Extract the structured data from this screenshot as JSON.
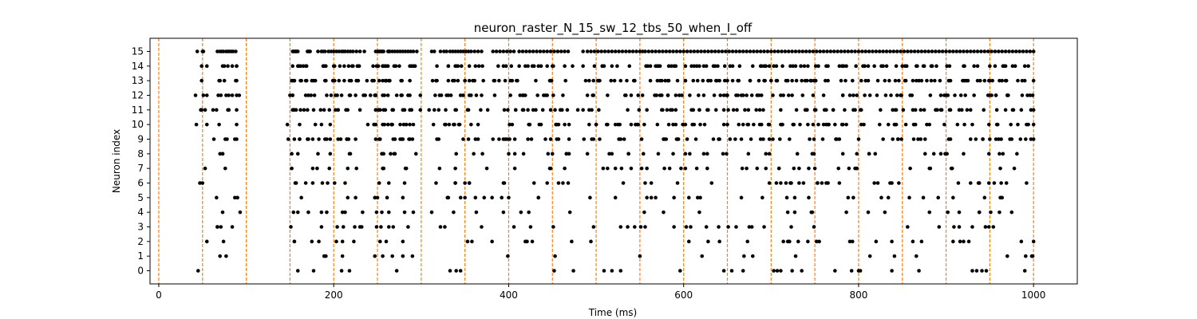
{
  "chart_data": {
    "type": "scatter",
    "title": "neuron_raster_N_15_sw_12_tbs_50_when_I_off",
    "xlabel": "Time (ms)",
    "ylabel": "Neuron index",
    "xlim": [
      -10,
      1050
    ],
    "ylim": [
      -0.9,
      15.9
    ],
    "x_ticks": [
      0,
      200,
      400,
      600,
      800,
      1000
    ],
    "y_ticks": [
      0,
      1,
      2,
      3,
      4,
      5,
      6,
      7,
      8,
      9,
      10,
      11,
      12,
      13,
      14,
      15
    ],
    "point_color": "#000000",
    "vline_color": "#ff7f0e",
    "vline_style": "dashed",
    "vlines": [
      0,
      50,
      100,
      150,
      200,
      250,
      300,
      350,
      400,
      450,
      500,
      550,
      600,
      650,
      700,
      750,
      800,
      850,
      900,
      950,
      1000
    ],
    "spikes": [
      {
        "neuron": 15,
        "times": [
          44,
          50,
          51,
          67,
          70,
          72,
          74,
          77,
          79,
          81,
          83,
          85,
          88,
          153,
          154,
          155,
          156,
          157,
          158,
          159,
          170,
          171,
          172,
          173,
          182,
          186,
          188,
          190,
          194,
          197,
          200,
          203,
          206,
          209,
          211,
          213,
          216,
          219,
          222,
          226,
          230,
          235,
          248,
          250,
          251,
          252,
          253,
          254,
          255,
          256,
          257,
          262,
          263,
          264,
          267,
          270,
          273,
          276,
          279,
          282,
          285,
          288,
          291,
          295,
          312,
          315,
          322,
          326,
          329,
          333,
          336,
          339,
          342,
          345,
          348,
          351,
          354,
          357,
          361,
          365,
          369,
          382,
          386,
          390,
          394,
          398,
          402,
          406,
          412,
          416,
          420,
          424,
          428,
          432,
          436,
          440,
          444,
          448,
          452,
          456,
          460,
          464,
          468,
          485,
          490,
          494,
          498,
          502,
          506,
          510,
          514,
          518,
          522,
          526,
          530,
          534,
          538,
          542,
          546,
          550,
          553,
          556,
          560,
          564,
          568,
          572,
          576,
          580,
          584,
          588,
          592,
          596,
          600,
          604,
          608,
          612,
          616,
          620,
          624,
          628,
          632,
          636,
          640,
          644,
          648,
          652,
          656,
          660,
          664,
          668,
          672,
          676,
          680,
          684,
          688,
          692,
          696,
          700,
          704,
          708,
          712,
          716,
          720,
          724,
          728,
          732,
          736,
          740,
          744,
          748,
          752,
          756,
          760,
          764,
          768,
          772,
          776,
          780,
          784,
          788,
          792,
          796,
          800,
          804,
          808,
          812,
          816,
          820,
          824,
          828,
          832,
          836,
          840,
          844,
          848,
          852,
          856,
          860,
          864,
          868,
          872,
          876,
          880,
          884,
          888,
          892,
          896,
          900,
          904,
          908,
          912,
          916,
          920,
          924,
          928,
          932,
          936,
          940,
          944,
          948,
          952,
          956,
          960,
          964,
          968,
          972,
          976,
          980,
          984,
          988,
          992,
          996,
          1000
        ]
      }
    ]
  }
}
